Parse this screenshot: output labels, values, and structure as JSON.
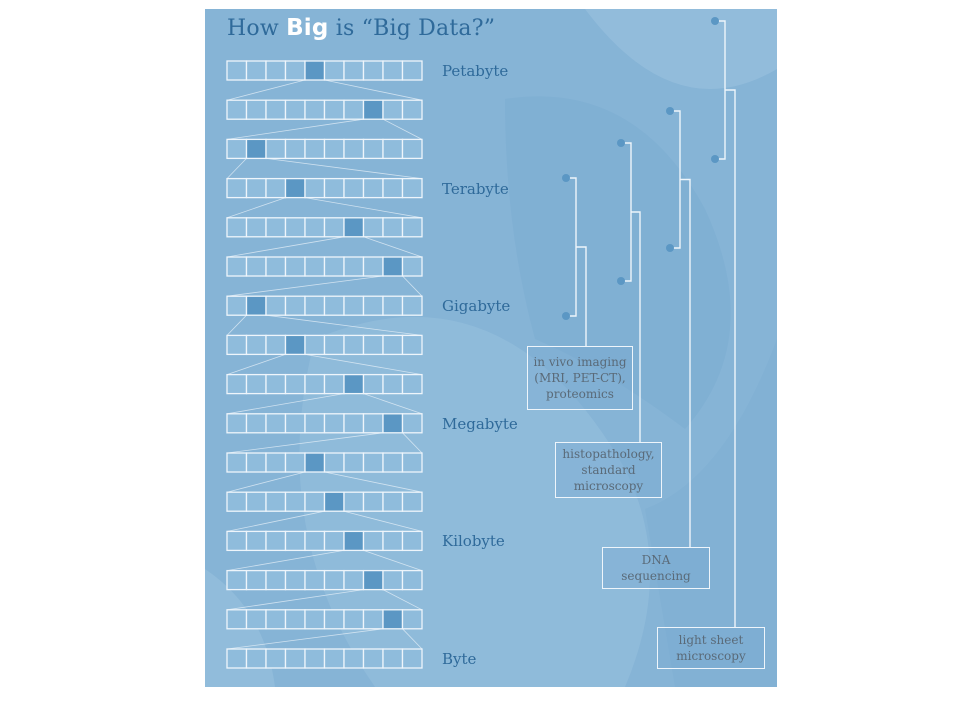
{
  "title": {
    "prefix": "How ",
    "emphasis": "Big",
    "suffix": " is “Big Data?”"
  },
  "rows": [
    {
      "highlight": 4,
      "label": "Petabyte"
    },
    {
      "highlight": 7,
      "label": ""
    },
    {
      "highlight": 1,
      "label": ""
    },
    {
      "highlight": 3,
      "label": "Terabyte"
    },
    {
      "highlight": 6,
      "label": ""
    },
    {
      "highlight": 8,
      "label": ""
    },
    {
      "highlight": 1,
      "label": "Gigabyte"
    },
    {
      "highlight": 3,
      "label": ""
    },
    {
      "highlight": 6,
      "label": ""
    },
    {
      "highlight": 8,
      "label": "Megabyte"
    },
    {
      "highlight": 4,
      "label": ""
    },
    {
      "highlight": 5,
      "label": ""
    },
    {
      "highlight": 6,
      "label": "Kilobyte"
    },
    {
      "highlight": 7,
      "label": ""
    },
    {
      "highlight": 8,
      "label": ""
    },
    {
      "highlight": -1,
      "label": "Byte"
    }
  ],
  "cells_per_row": 10,
  "techniques": [
    {
      "name": "in vivo imaging (MRI, PET-CT), proteomics",
      "lines": [
        "in vivo imaging",
        "(MRI, PET-CT),",
        "proteomics"
      ],
      "range_top": "Terabyte",
      "range_bottom": "Gigabyte"
    },
    {
      "name": "histopathology, standard microscopy",
      "lines": [
        "histopathology,",
        "standard",
        "microscopy"
      ],
      "range_top": "Terabyte",
      "range_bottom": "Gigabyte"
    },
    {
      "name": "DNA sequencing",
      "lines": [
        "DNA",
        "sequencing"
      ],
      "range_top": "Petabyte",
      "range_bottom": "Terabyte"
    },
    {
      "name": "light sheet microscopy",
      "lines": [
        "light sheet",
        "microscopy"
      ],
      "range_top": "Petabyte",
      "range_bottom": "Terabyte"
    }
  ],
  "colors": {
    "background": "#86b4d6",
    "cell_fill": "#8fbcdc",
    "cell_highlight": "#5b97c4",
    "cell_border": "#eef5fb",
    "label_text": "#2f6a9a",
    "box_text": "#5a6a78",
    "bracket": "#eef5fb",
    "dot": "#5b97c4"
  }
}
